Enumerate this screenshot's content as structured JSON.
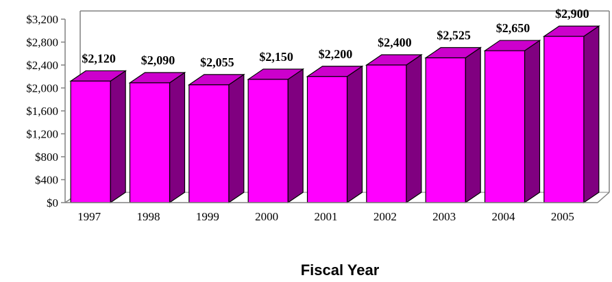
{
  "chart_data": {
    "type": "bar",
    "title": "",
    "xlabel": "Fiscal Year",
    "ylabel": "",
    "categories": [
      "1997",
      "1998",
      "1999",
      "2000",
      "2001",
      "2002",
      "2003",
      "2004",
      "2005"
    ],
    "values": [
      2120,
      2090,
      2055,
      2150,
      2200,
      2400,
      2525,
      2650,
      2900
    ],
    "data_labels": [
      "$2,120",
      "$2,090",
      "$2,055",
      "$2,150",
      "$2,200",
      "$2,400",
      "$2,525",
      "$2,650",
      "$2,900"
    ],
    "ylim": [
      0,
      3200
    ],
    "yticks": [
      0,
      400,
      800,
      1200,
      1600,
      2000,
      2400,
      2800,
      3200
    ],
    "ytick_labels": [
      "$0",
      "$400",
      "$800",
      "$1,200",
      "$1,600",
      "$2,000",
      "$2,400",
      "$2,800",
      "$3,200"
    ],
    "grid": false,
    "legend": "none",
    "three_d": true,
    "colors": {
      "front": "#ff00ff",
      "side": "#800080",
      "top": "#cc00cc",
      "outline": "#000000",
      "wall": "#808080"
    }
  }
}
